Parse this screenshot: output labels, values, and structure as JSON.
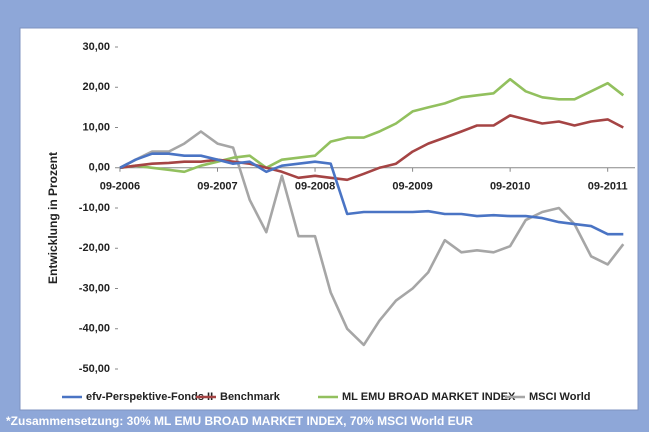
{
  "chart_data": {
    "type": "line",
    "ylabel": "Entwicklung in Prozent",
    "footnote": "*Zusammensetzung: 30% ML EMU BROAD MARKET INDEX, 70% MSCI World EUR",
    "x": [
      2006.67,
      2006.83,
      2007,
      2007.17,
      2007.33,
      2007.5,
      2007.67,
      2007.83,
      2008,
      2008.17,
      2008.33,
      2008.5,
      2008.67,
      2008.83,
      2009,
      2009.17,
      2009.33,
      2009.5,
      2009.67,
      2009.83,
      2010,
      2010.17,
      2010.33,
      2010.5,
      2010.67,
      2010.83,
      2011,
      2011.17,
      2011.33,
      2011.5,
      2011.67,
      2011.83
    ],
    "series": [
      {
        "name": "efv-Perspektive-Fonds II",
        "color": "#4a74c4",
        "values": [
          0,
          2,
          3.5,
          3.5,
          3,
          3,
          2,
          1,
          1.5,
          -1,
          0.5,
          1,
          1.5,
          1,
          -11.5,
          -11,
          -11,
          -11,
          -11,
          -10.8,
          -11.5,
          -11.5,
          -12,
          -11.8,
          -12,
          -12,
          -12.5,
          -13.5,
          -14,
          -14.5,
          -16.5,
          -16.5
        ]
      },
      {
        "name": "Benchmark",
        "color": "#a54444",
        "values": [
          0,
          0.5,
          1,
          1.2,
          1.5,
          1.5,
          2,
          1.5,
          1,
          0,
          -1,
          -2.5,
          -2,
          -2.5,
          -3,
          -1.5,
          0,
          1,
          4,
          6,
          7.5,
          9,
          10.5,
          10.5,
          13,
          12,
          11,
          11.5,
          10.5,
          11.5,
          12,
          10
        ]
      },
      {
        "name": "ML EMU BROAD MARKET INDEX",
        "color": "#92c05e",
        "values": [
          0,
          0.5,
          0,
          -0.5,
          -1,
          0.5,
          1.5,
          2.5,
          3,
          0,
          2,
          2.5,
          3,
          6.5,
          7.5,
          7.5,
          9,
          11,
          14,
          15,
          16,
          17.5,
          18,
          18.5,
          22,
          19,
          17.5,
          17,
          17,
          19,
          21,
          18
        ]
      },
      {
        "name": "MSCI World",
        "color": "#a6a6a6",
        "values": [
          0,
          2,
          4,
          4,
          6,
          9,
          6,
          5,
          -8,
          -16,
          -2,
          -17,
          -17,
          -31,
          -40,
          -44,
          -38,
          -33,
          -30,
          -26,
          -18,
          -21,
          -20.5,
          -21,
          -19.5,
          -13,
          -11,
          -10,
          -14,
          -22,
          -24,
          -19
        ]
      }
    ],
    "xlim": [
      2006.65,
      2011.95
    ],
    "xticks": [
      {
        "value": 2006.67,
        "label": "09-2006"
      },
      {
        "value": 2007.67,
        "label": "09-2007"
      },
      {
        "value": 2008.67,
        "label": "09-2008"
      },
      {
        "value": 2009.67,
        "label": "09-2009"
      },
      {
        "value": 2010.67,
        "label": "09-2010"
      },
      {
        "value": 2011.67,
        "label": "09-2011"
      }
    ],
    "ylim": [
      -50,
      30
    ],
    "yticks": [
      {
        "value": 30,
        "label": "30,00"
      },
      {
        "value": 20,
        "label": "20,00"
      },
      {
        "value": 10,
        "label": "10,00"
      },
      {
        "value": 0,
        "label": "0,00"
      },
      {
        "value": -10,
        "label": "-10,00"
      },
      {
        "value": -20,
        "label": "-20,00"
      },
      {
        "value": -30,
        "label": "-30,00"
      },
      {
        "value": -40,
        "label": "-40,00"
      },
      {
        "value": -50,
        "label": "-50,00"
      }
    ],
    "grid": false
  }
}
